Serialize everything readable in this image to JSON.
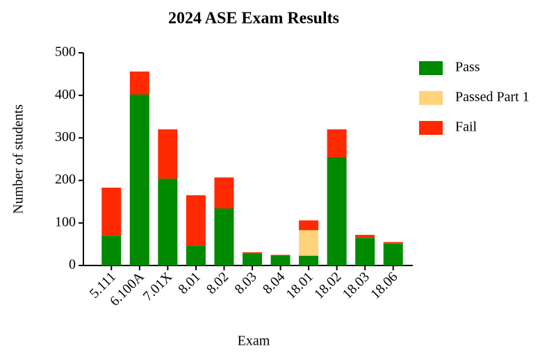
{
  "chart_data": {
    "type": "stacked_bar",
    "title": "2024 ASE Exam Results",
    "x_label": "Exam",
    "y_label": "Number of students",
    "categories": [
      "5.111",
      "6.100A",
      "7.01X",
      "8.01",
      "8.02",
      "8.03",
      "8.04",
      "18.01",
      "18.02",
      "18.03",
      "18.06"
    ],
    "series": [
      {
        "name": "Pass",
        "color": "#008a00",
        "values": [
          70,
          402,
          204,
          47,
          134,
          29,
          23,
          23,
          255,
          65,
          51
        ]
      },
      {
        "name": "Passed Part 1",
        "color": "#ffd37a",
        "values": [
          0,
          0,
          0,
          0,
          0,
          0,
          0,
          60,
          0,
          0,
          0
        ]
      },
      {
        "name": "Fail",
        "color": "#ff2a00",
        "values": [
          113,
          54,
          116,
          118,
          73,
          2,
          2,
          23,
          65,
          7,
          4
        ]
      }
    ],
    "ylim": [
      0,
      500
    ],
    "yticks": [
      0,
      100,
      200,
      300,
      400,
      500
    ],
    "legend": "right"
  }
}
